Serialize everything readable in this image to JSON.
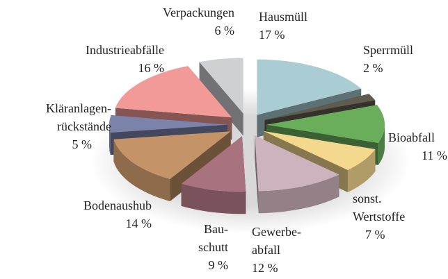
{
  "chart_data": {
    "type": "pie",
    "categories": [
      "Hausmüll",
      "Sperrmüll",
      "Bioabfall",
      "sonst.\nWertstoffe",
      "Gewerbe-\nabfall",
      "Bau-\nschutt",
      "Bodenaushub",
      "Kläranlagen-\nrückstände",
      "Industrieabfälle",
      "Verpackungen"
    ],
    "values": [
      17,
      2,
      11,
      7,
      12,
      9,
      14,
      5,
      16,
      6
    ],
    "value_labels": [
      "17 %",
      "2 %",
      "11 %",
      "7 %",
      "12 %",
      "9 %",
      "14 %",
      "5 %",
      "16 %",
      "6 %"
    ],
    "colors": [
      "#a9cdd2",
      "#5f5b4f",
      "#6aae5c",
      "#f3d88e",
      "#cdb3bd",
      "#a8727f",
      "#c49468",
      "#7b83ab",
      "#f29a98",
      "#cfd0d2"
    ]
  }
}
